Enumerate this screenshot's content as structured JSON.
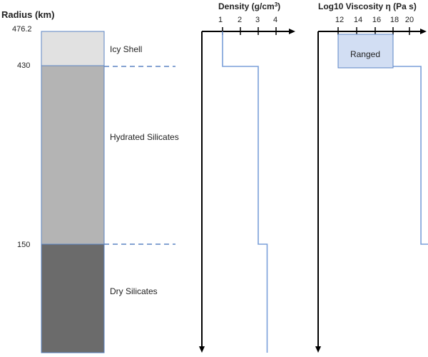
{
  "radius_axis": {
    "title": "Radius (km)",
    "ticks": [
      {
        "label": "476.2",
        "value": 476.2
      },
      {
        "label": "430",
        "value": 430
      },
      {
        "label": "150",
        "value": 150
      }
    ]
  },
  "layers": [
    {
      "name": "Icy Shell",
      "top_km": 476.2,
      "bottom_km": 430,
      "fill": "#e1e1e1"
    },
    {
      "name": "Hydrated Silicates",
      "top_km": 430,
      "bottom_km": 150,
      "fill": "#b4b4b4"
    },
    {
      "name": "Dry Silicates",
      "top_km": 150,
      "bottom_km": 0,
      "fill": "#6b6b6b"
    }
  ],
  "density_panel": {
    "title_main": "Density (g/cm",
    "title_sup": "3",
    "title_end": ")",
    "ticks": [
      "1",
      "2",
      "3",
      "4"
    ],
    "profile": [
      {
        "top_km": 476.2,
        "bottom_km": 430,
        "value": 1
      },
      {
        "top_km": 430,
        "bottom_km": 150,
        "value": 3
      },
      {
        "top_km": 150,
        "bottom_km": 0,
        "value": 3.5
      }
    ]
  },
  "viscosity_panel": {
    "title": "Log10 Viscosity η (Pa s)",
    "ticks": [
      "12",
      "14",
      "16",
      "18",
      "20"
    ],
    "ranged_label": "Ranged",
    "ranged_box": {
      "min": 12,
      "max": 18
    },
    "profile": [
      {
        "top_km": 430,
        "bottom_km": 150,
        "value": 21
      },
      {
        "top_km": 150,
        "bottom_km": 0,
        "value": 22
      }
    ]
  },
  "colors": {
    "boundary": "#5b84c4",
    "profile": "#7a9fd9",
    "ranged_fill": "#d2def3",
    "axis": "#000000"
  }
}
